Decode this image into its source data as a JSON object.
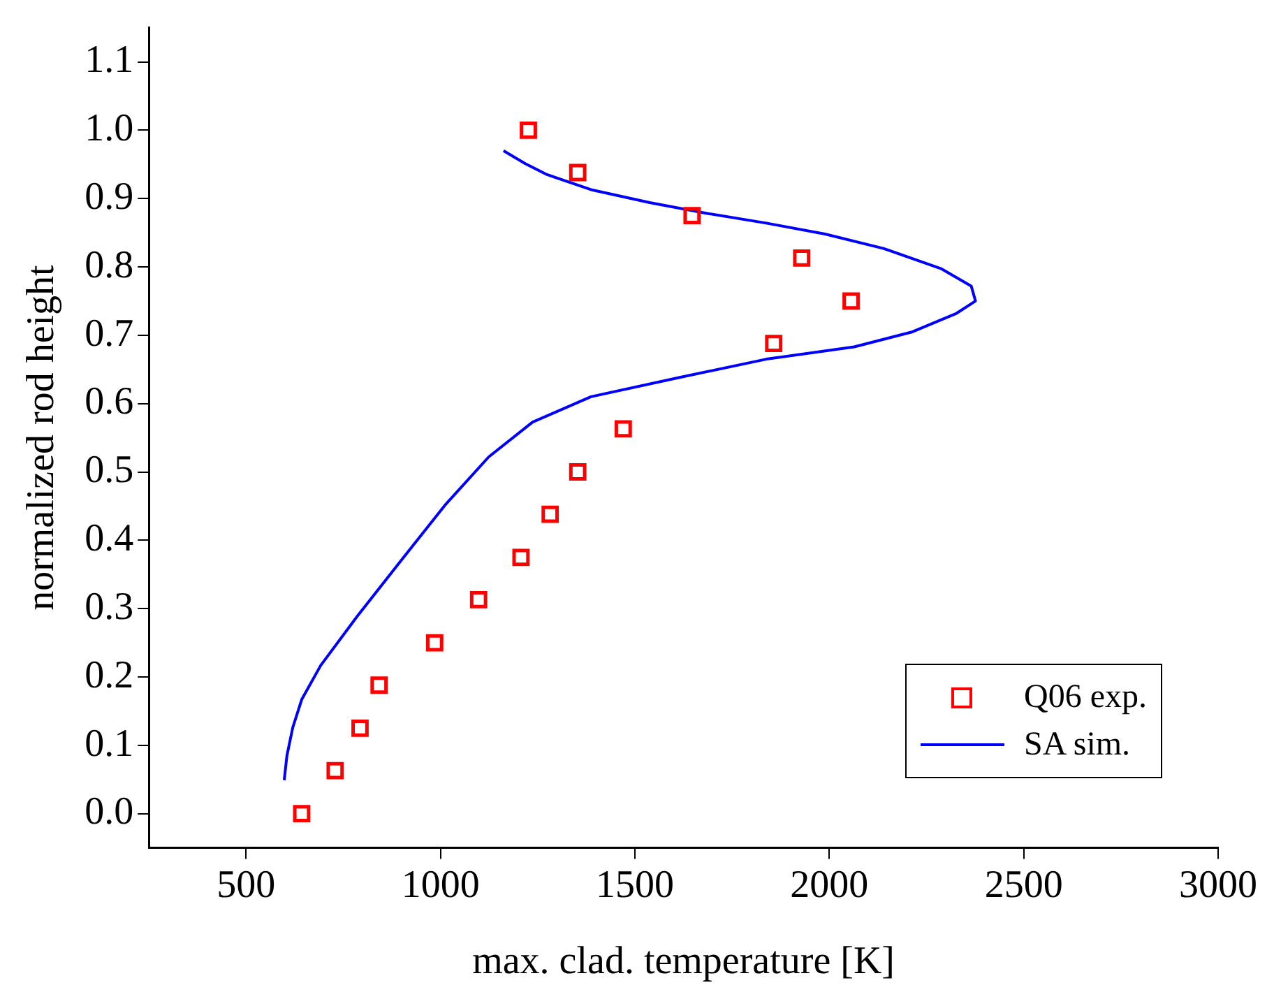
{
  "chart_data": {
    "type": "scatter",
    "xlabel": "max. clad. temperature [K]",
    "ylabel": "normalized rod height",
    "xlim": [
      250,
      3000
    ],
    "xticks": [
      500,
      1000,
      1500,
      2000,
      2500,
      3000
    ],
    "ylim": [
      -0.05,
      1.15
    ],
    "yticks": [
      {
        "value": 0,
        "label": "0.0"
      },
      {
        "value": 0.1,
        "label": "0.1"
      },
      {
        "value": 0.2,
        "label": "0.2"
      },
      {
        "value": 0.3,
        "label": "0.3"
      },
      {
        "value": 0.4,
        "label": "0.4"
      },
      {
        "value": 0.5,
        "label": "0.5"
      },
      {
        "value": 0.6,
        "label": "0.6"
      },
      {
        "value": 0.7,
        "label": "0.7"
      },
      {
        "value": 0.8,
        "label": "0.8"
      },
      {
        "value": 0.9,
        "label": "0.9"
      },
      {
        "value": 1.0,
        "label": "1.0"
      },
      {
        "value": 1.1,
        "label": "1.1"
      }
    ],
    "grid": false,
    "legend": "bottom right",
    "series": [
      {
        "name": "Q06 exp.",
        "type": "scatter",
        "marker": "square",
        "color": "#ff0000",
        "x": [
          643,
          729,
          793,
          842,
          985,
          1098,
          1207,
          1282,
          1353,
          1470,
          1857,
          2056,
          1929,
          1647,
          1353,
          1226
        ],
        "values": [
          0,
          0.063,
          0.125,
          0.188,
          0.25,
          0.313,
          0.375,
          0.438,
          0.5,
          0.563,
          0.688,
          0.75,
          0.813,
          0.875,
          0.938,
          1.0
        ]
      },
      {
        "name": "SA sim.",
        "type": "line",
        "marker": "none",
        "line_style": "solid",
        "color": "#0000ff",
        "x": [
          598,
          605,
          620,
          643,
          692,
          786,
          898,
          1011,
          1124,
          1237,
          1387,
          1613,
          1838,
          2064,
          2214,
          2327,
          2376,
          2365,
          2289,
          2139,
          1989,
          1838,
          1688,
          1538,
          1387,
          1274,
          1218,
          1162
        ],
        "values": [
          0.049,
          0.085,
          0.126,
          0.167,
          0.217,
          0.289,
          0.37,
          0.451,
          0.522,
          0.573,
          0.61,
          0.638,
          0.665,
          0.683,
          0.705,
          0.732,
          0.75,
          0.772,
          0.797,
          0.827,
          0.848,
          0.864,
          0.878,
          0.894,
          0.913,
          0.935,
          0.951,
          0.97
        ]
      }
    ]
  }
}
